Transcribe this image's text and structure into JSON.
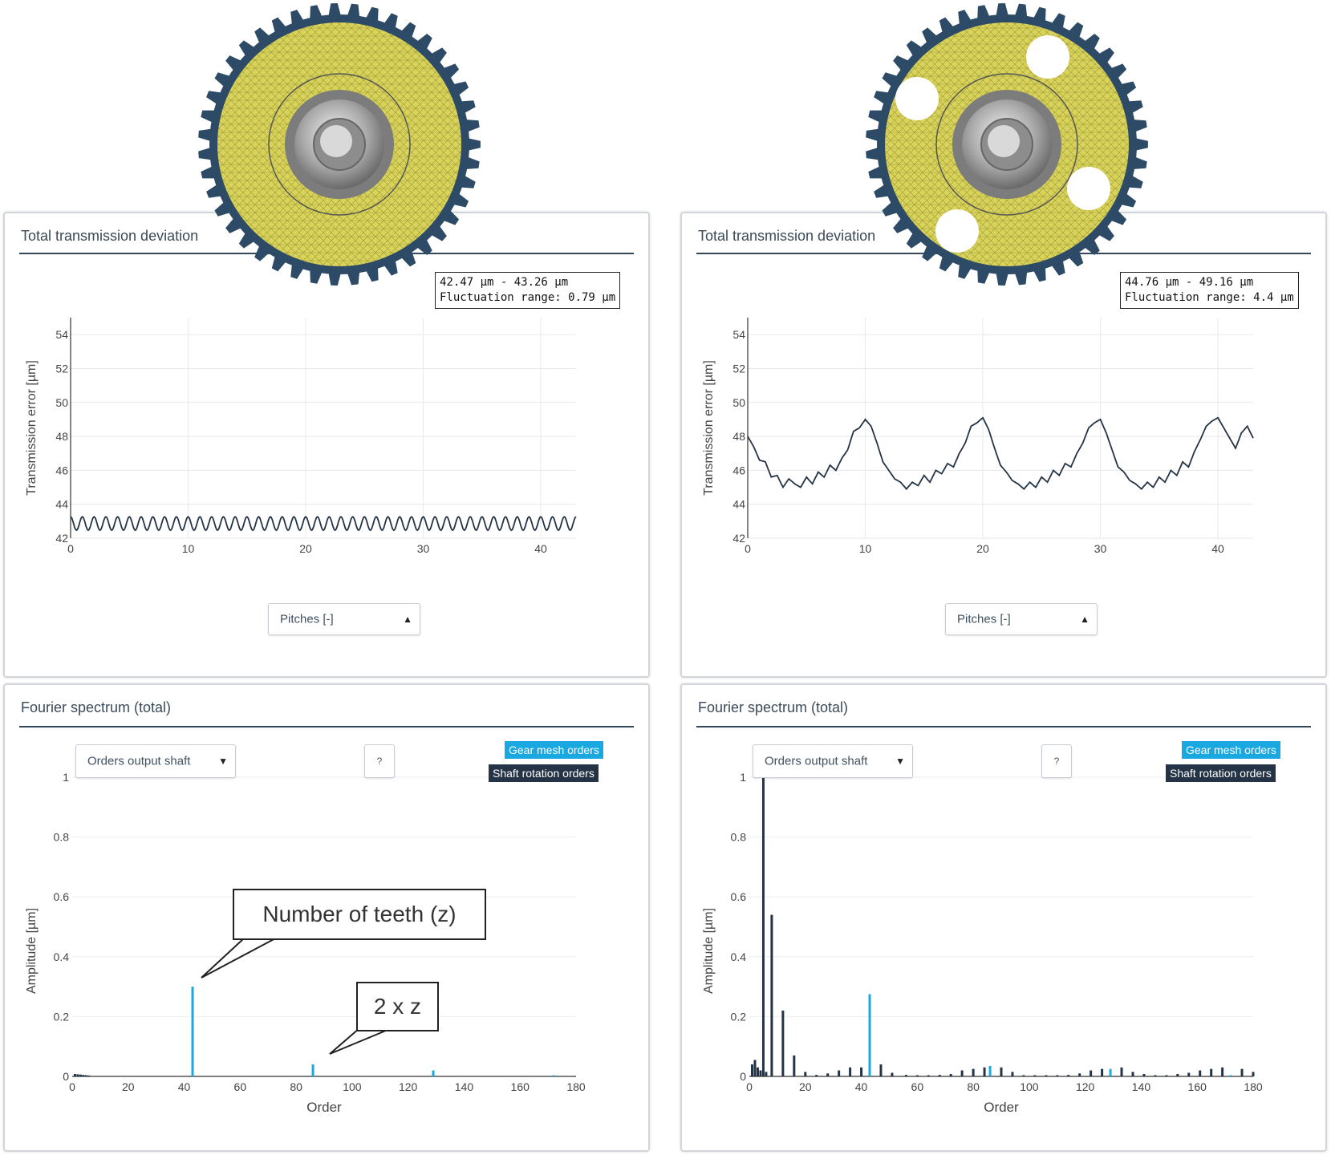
{
  "left": {
    "tte": {
      "title": "Total transmission deviation",
      "range_line1": "42.47 µm - 43.26 µm",
      "range_line2": "Fluctuation range: 0.79 µm",
      "xselect": "Pitches [-]"
    },
    "fourier": {
      "title": "Fourier spectrum (total)",
      "select": "Orders output shaft",
      "help": "?",
      "legend_gear": "Gear mesh orders",
      "legend_shaft": "Shaft rotation orders",
      "callout_z": "Number of teeth (z)",
      "callout_2z": "2 x z"
    }
  },
  "right": {
    "tte": {
      "title": "Total transmission deviation",
      "range_line1": "44.76 µm - 49.16 µm",
      "range_line2": "Fluctuation range: 4.4 µm",
      "xselect": "Pitches [-]"
    },
    "fourier": {
      "title": "Fourier spectrum (total)",
      "select": "Orders output shaft",
      "help": "?",
      "legend_gear": "Gear mesh orders",
      "legend_shaft": "Shaft rotation orders"
    }
  },
  "icons": {
    "dropdown": "triangle-down-icon",
    "dropup": "triangle-up-icon",
    "gear": "gear-mesh-image"
  },
  "colors": {
    "line": "#243446",
    "gear_bar": "#1aa8e0",
    "shaft_bar": "#243446",
    "rule": "#34475a"
  },
  "chart_data": [
    {
      "id": "tte_left",
      "type": "line",
      "ylabel": "Transmission error [µm]",
      "xlim": [
        0,
        43
      ],
      "ylim": [
        42,
        55
      ],
      "xticks": [
        0,
        10,
        20,
        30,
        40
      ],
      "yticks": [
        42,
        44,
        46,
        48,
        50,
        52,
        54
      ],
      "series": [
        {
          "model": "sinusoid",
          "min": 42.47,
          "max": 43.26,
          "periods_per_pitch": 1
        }
      ]
    },
    {
      "id": "tte_right",
      "type": "line",
      "ylabel": "Transmission error [µm]",
      "xlim": [
        0,
        43
      ],
      "ylim": [
        42,
        55
      ],
      "xticks": [
        0,
        10,
        20,
        30,
        40
      ],
      "yticks": [
        42,
        44,
        46,
        48,
        50,
        52,
        54
      ],
      "series": [
        {
          "x": [
            0,
            0.5,
            1,
            1.5,
            2,
            2.5,
            3,
            3.5,
            4,
            4.5,
            5,
            5.5,
            6,
            6.5,
            7,
            7.5,
            8,
            8.5,
            9,
            9.5,
            10,
            10.5,
            11,
            11.5,
            12,
            12.5,
            13,
            13.5,
            14,
            14.5,
            15,
            15.5,
            16,
            16.5,
            17,
            17.5,
            18,
            18.5,
            19,
            19.5,
            20,
            20.5,
            21,
            21.5,
            22,
            22.5,
            23,
            23.5,
            24,
            24.5,
            25,
            25.5,
            26,
            26.5,
            27,
            27.5,
            28,
            28.5,
            29,
            29.5,
            30,
            30.5,
            31,
            31.5,
            32,
            32.5,
            33,
            33.5,
            34,
            34.5,
            35,
            35.5,
            36,
            36.5,
            37,
            37.5,
            38,
            38.5,
            39,
            39.5,
            40,
            40.5,
            41,
            41.5,
            42,
            42.5,
            43
          ],
          "y": [
            48.0,
            47.4,
            46.6,
            46.5,
            45.6,
            45.7,
            45.0,
            45.5,
            45.2,
            45.0,
            45.6,
            45.2,
            45.9,
            45.6,
            46.3,
            46.0,
            46.7,
            47.2,
            48.3,
            48.5,
            49.0,
            48.6,
            47.6,
            46.5,
            46.0,
            45.5,
            45.3,
            44.9,
            45.3,
            45.1,
            45.7,
            45.3,
            46.0,
            45.8,
            46.4,
            46.2,
            47.0,
            47.6,
            48.6,
            48.8,
            49.1,
            48.4,
            47.3,
            46.3,
            45.9,
            45.4,
            45.2,
            44.9,
            45.3,
            45.0,
            45.6,
            45.3,
            46.0,
            45.7,
            46.4,
            46.2,
            47.0,
            47.6,
            48.5,
            48.8,
            49.0,
            48.2,
            47.2,
            46.2,
            45.9,
            45.4,
            45.2,
            44.9,
            45.3,
            45.0,
            45.6,
            45.3,
            46.0,
            45.7,
            46.5,
            46.2,
            47.1,
            47.8,
            48.6,
            48.9,
            49.1,
            48.5,
            47.9,
            47.3,
            48.2,
            48.6,
            47.9
          ]
        }
      ]
    },
    {
      "id": "fourier_left",
      "type": "bar",
      "xlabel": "Order",
      "ylabel": "Amplitude [µm]",
      "xlim": [
        0,
        180
      ],
      "ylim": [
        0,
        1
      ],
      "xticks": [
        0,
        20,
        40,
        60,
        80,
        100,
        120,
        140,
        160,
        180
      ],
      "yticks": [
        0,
        0.2,
        0.4,
        0.6,
        0.8,
        1
      ],
      "series": [
        {
          "name": "Gear mesh orders",
          "x": [
            43,
            86,
            129,
            172
          ],
          "y": [
            0.3,
            0.04,
            0.02,
            0.004
          ]
        },
        {
          "name": "Shaft rotation orders",
          "x": [
            1,
            2,
            3,
            4,
            5,
            6
          ],
          "y": [
            0.008,
            0.007,
            0.006,
            0.005,
            0.004,
            0.003
          ]
        }
      ]
    },
    {
      "id": "fourier_right",
      "type": "bar",
      "xlabel": "Order",
      "ylabel": "Amplitude [µm]",
      "xlim": [
        0,
        180
      ],
      "ylim": [
        0,
        1
      ],
      "xticks": [
        0,
        20,
        40,
        60,
        80,
        100,
        120,
        140,
        160,
        180
      ],
      "yticks": [
        0,
        0.2,
        0.4,
        0.6,
        0.8,
        1
      ],
      "series": [
        {
          "name": "Gear mesh orders",
          "x": [
            43,
            86,
            129,
            172
          ],
          "y": [
            0.275,
            0.035,
            0.025,
            0.004
          ]
        },
        {
          "name": "Shaft rotation orders",
          "x": [
            1,
            2,
            3,
            4,
            5,
            6,
            8,
            12,
            16,
            20,
            24,
            28,
            32,
            36,
            40,
            47,
            51,
            56,
            60,
            64,
            68,
            72,
            76,
            80,
            84,
            90,
            94,
            98,
            102,
            106,
            110,
            114,
            118,
            122,
            126,
            133,
            137,
            141,
            145,
            149,
            153,
            157,
            161,
            165,
            169,
            176,
            180
          ],
          "y": [
            0.04,
            0.055,
            0.03,
            0.02,
            1.0,
            0.015,
            0.54,
            0.22,
            0.07,
            0.015,
            0.005,
            0.01,
            0.02,
            0.03,
            0.03,
            0.04,
            0.012,
            0.005,
            0.004,
            0.004,
            0.005,
            0.008,
            0.02,
            0.025,
            0.03,
            0.03,
            0.015,
            0.004,
            0.004,
            0.004,
            0.004,
            0.005,
            0.01,
            0.02,
            0.025,
            0.03,
            0.015,
            0.008,
            0.004,
            0.004,
            0.008,
            0.012,
            0.02,
            0.025,
            0.03,
            0.025,
            0.015
          ]
        }
      ]
    }
  ]
}
